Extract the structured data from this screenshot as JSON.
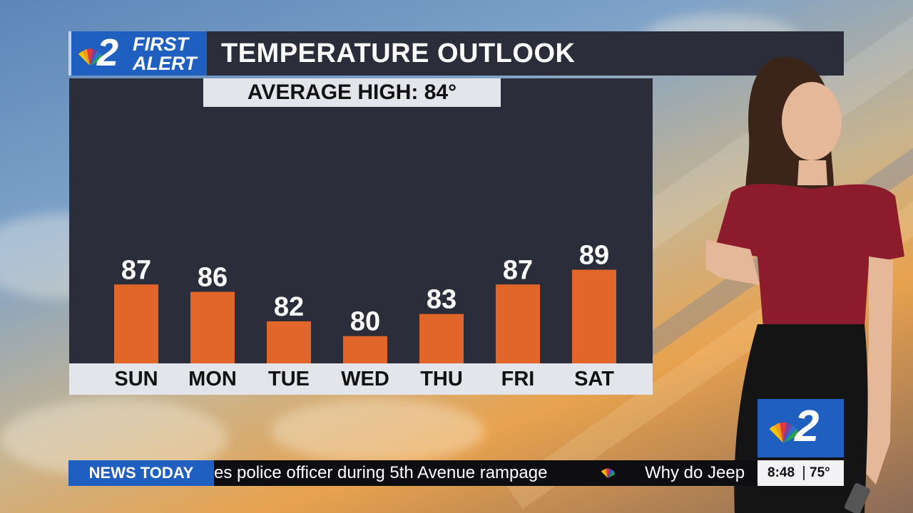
{
  "header": {
    "logo_number": "2",
    "logo_line1": "FIRST",
    "logo_line2": "ALERT",
    "title": "TEMPERATURE OUTLOOK"
  },
  "average_high_label": "AVERAGE HIGH: 84°",
  "chart_data": {
    "type": "bar",
    "title": "TEMPERATURE OUTLOOK",
    "categories": [
      "SUN",
      "MON",
      "TUE",
      "WED",
      "THU",
      "FRI",
      "SAT"
    ],
    "values": [
      87,
      86,
      82,
      80,
      83,
      87,
      89
    ],
    "data_labels": [
      "87",
      "86",
      "82",
      "80",
      "83",
      "87",
      "89"
    ],
    "bar_color": "#e2662a",
    "background_color": "#2b2d3a"
  },
  "bug": {
    "number": "2"
  },
  "ticker": {
    "label": "NEWS TODAY",
    "headline_1": "es police officer during 5th Avenue rampage",
    "headline_2": "Why do Jeep",
    "time": "8:48",
    "temperature": "75°"
  },
  "colors": {
    "brand_blue": "#1f5fc0",
    "panel_dark": "#2b2d3a",
    "bar_orange": "#e2662a",
    "label_strip": "#e4e5ea"
  }
}
